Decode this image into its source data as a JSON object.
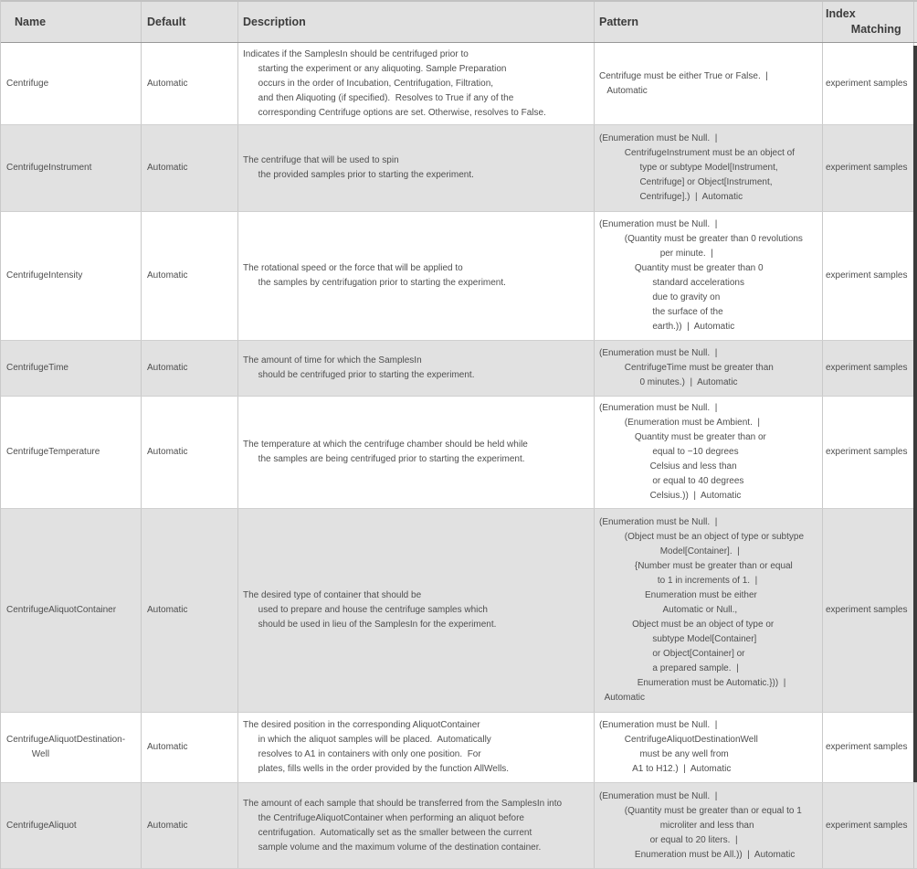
{
  "colors": {
    "row_alt_background": "#e1e1e1",
    "header_background": "#e1e1e1",
    "border": "#c9c9c9",
    "scrollbar_thumb": "#3b3b3b"
  },
  "table": {
    "columns": [
      {
        "label": "Name"
      },
      {
        "label": "Default"
      },
      {
        "label": "Description"
      },
      {
        "label": "Pattern"
      },
      {
        "label": "Index\n        Matching"
      }
    ],
    "rows": [
      {
        "name": "Centrifuge",
        "default": "Automatic",
        "description": "Indicates if the SamplesIn should be centrifuged prior to\n      starting the experiment or any aliquoting. Sample Preparation\n      occurs in the order of Incubation, Centrifugation, Filtration,\n      and then Aliquoting (if specified).  Resolves to True if any of the\n      corresponding Centrifuge options are set. Otherwise, resolves to False.",
        "pattern": "Centrifuge must be either True or False.  |\n   Automatic",
        "index_matching": "experiment samples"
      },
      {
        "name": "CentrifugeInstrument",
        "default": "Automatic",
        "description": "The centrifuge that will be used to spin\n      the provided samples prior to starting the experiment.",
        "pattern": "(Enumeration must be Null.  |\n          CentrifugeInstrument must be an object of\n                type or subtype Model[Instrument,\n                Centrifuge] or Object[Instrument,\n                Centrifuge].)  |  Automatic",
        "index_matching": "experiment samples"
      },
      {
        "name": "CentrifugeIntensity",
        "default": "Automatic",
        "description": "The rotational speed or the force that will be applied to\n      the samples by centrifugation prior to starting the experiment.",
        "pattern": "(Enumeration must be Null.  |\n          (Quantity must be greater than 0 revolutions\n                        per minute.  |\n              Quantity must be greater than 0\n                     standard accelerations\n                     due to gravity on\n                     the surface of the\n                     earth.))  |  Automatic",
        "index_matching": "experiment samples"
      },
      {
        "name": "CentrifugeTime",
        "default": "Automatic",
        "description": "The amount of time for which the SamplesIn\n      should be centrifuged prior to starting the experiment.",
        "pattern": "(Enumeration must be Null.  |\n          CentrifugeTime must be greater than\n                0 minutes.)  |  Automatic",
        "index_matching": "experiment samples"
      },
      {
        "name": "CentrifugeTemperature",
        "default": "Automatic",
        "description": "The temperature at which the centrifuge chamber should be held while\n      the samples are being centrifuged prior to starting the experiment.",
        "pattern": "(Enumeration must be Null.  |\n          (Enumeration must be Ambient.  |\n              Quantity must be greater than or\n                     equal to −10 degrees\n                    Celsius and less than\n                     or equal to 40 degrees\n                    Celsius.))  |  Automatic",
        "index_matching": "experiment samples"
      },
      {
        "name": "CentrifugeAliquotContainer",
        "default": "Automatic",
        "description": "The desired type of container that should be\n      used to prepare and house the centrifuge samples which\n      should be used in lieu of the SamplesIn for the experiment.",
        "pattern": "(Enumeration must be Null.  |\n          (Object must be an object of type or subtype\n                        Model[Container].  |\n              {Number must be greater than or equal\n                       to 1 in increments of 1.  |\n                  Enumeration must be either\n                         Automatic or Null.,\n             Object must be an object of type or\n                     subtype Model[Container]\n                     or Object[Container] or\n                     a prepared sample.  |\n               Enumeration must be Automatic.}))  |\n  Automatic",
        "index_matching": "experiment samples"
      },
      {
        "name": "CentrifugeAliquotDestination-\n          Well",
        "default": "Automatic",
        "description": "The desired position in the corresponding AliquotContainer\n      in which the aliquot samples will be placed.  Automatically\n      resolves to A1 in containers with only one position.  For\n      plates, fills wells in the order provided by the function AllWells.",
        "pattern": "(Enumeration must be Null.  |\n          CentrifugeAliquotDestinationWell\n                must be any well from\n             A1 to H12.)  |  Automatic",
        "index_matching": "experiment samples"
      },
      {
        "name": "CentrifugeAliquot",
        "default": "Automatic",
        "description": "The amount of each sample that should be transferred from the SamplesIn into\n      the CentrifugeAliquotContainer when performing an aliquot before\n      centrifugation.  Automatically set as the smaller between the current\n      sample volume and the maximum volume of the destination container.",
        "pattern": "(Enumeration must be Null.  |\n          (Quantity must be greater than or equal to 1\n                        microliter and less than\n                    or equal to 20 liters.  |\n              Enumeration must be All.))  |  Automatic",
        "index_matching": "experiment samples"
      }
    ]
  }
}
